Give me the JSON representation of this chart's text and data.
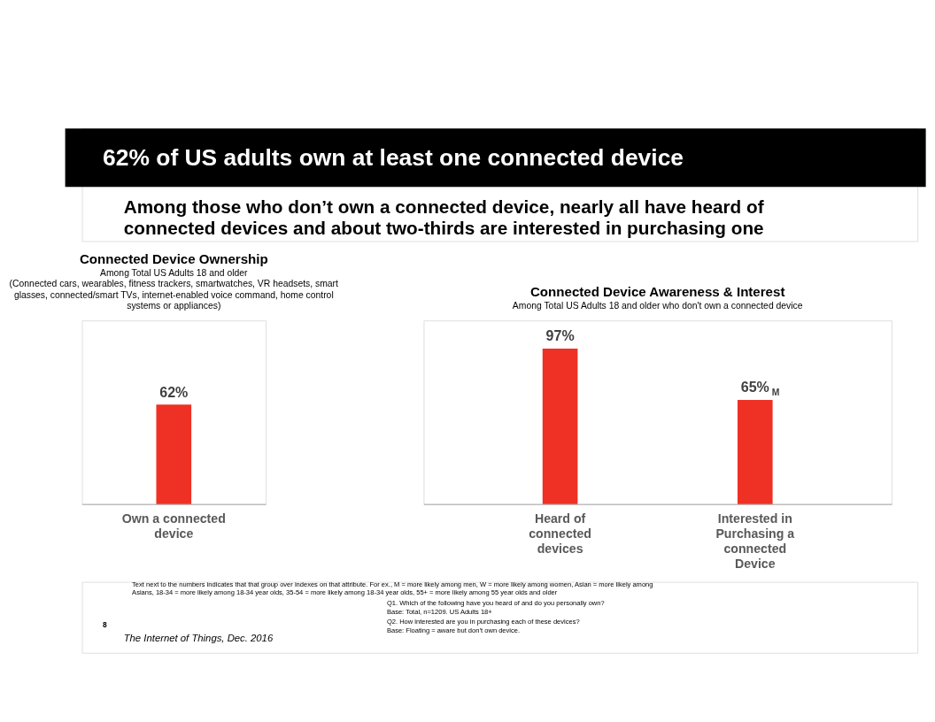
{
  "chart_data": [
    {
      "type": "bar",
      "title": "Connected Device Ownership",
      "subtitle": "Among Total US Adults 18 and older",
      "categories": [
        "Own a connected device"
      ],
      "values": [
        62
      ],
      "color": "#ee3124",
      "value_labels": [
        "62%"
      ],
      "annotations": [
        "62% of US adults own at least one connected device",
        "Among those who don’t own a connected device, nearly all have heard of connected devices and about two-thirds are interested in purchasing one",
        "(Connected cars, wearables, fitness trackers, smartwatches, VR headsets, smart glasses, connected/smart TVs, internet-enabled voice command, home control systems or appliances)",
        "Text next to the numbers indicates that that group over indexes on that attribute.  For ex., M = more likely among men, W = more likely among women, Asian = more likely among Asians, 18-34 = more likely among 18-34 year olds, 35-54 = more likely among 18-34 year olds, 55+ = more likely among 55 year olds and older",
        "Q1. Which of the following have you heard of and do you personally own?",
        "Base: Total, n=1209.  US Adults 18+",
        "Q2. How interested are you in purchasing each of these devices?",
        "Base: Floating = aware but don’t own device.",
        "The Internet of Things, Dec. 2016",
        "8"
      ]
    },
    {
      "type": "bar",
      "title": "Connected Device Awareness & Interest",
      "subtitle": "Among Total US Adults 18 and older who don't own a connected device",
      "categories": [
        "Heard of connected devices",
        "Interested in Purchasing a connected Device"
      ],
      "values": [
        97,
        65
      ],
      "color": "#ee3124",
      "value_labels": [
        "97%",
        "65%$_{M}$"
      ]
    }
  ]
}
